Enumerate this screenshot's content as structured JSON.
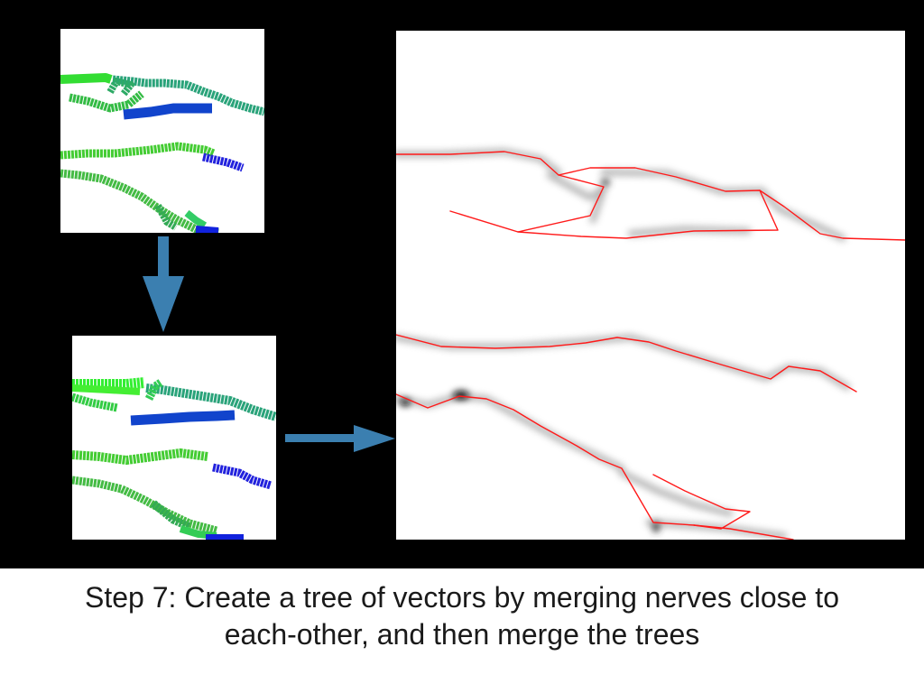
{
  "caption": {
    "line1": "Step 7: Create a tree of vectors by merging nerves close to",
    "line2": "each-other, and then merge the trees"
  },
  "colors": {
    "background": "#000000",
    "caption_area": "#ffffff",
    "arrow": "#3b7fb0",
    "nerve_tree": "#ff1a1a",
    "vector_green": "#33cc33",
    "vector_teal": "#22997a",
    "vector_blue": "#1133dd"
  },
  "icons": [
    "arrow-down-icon",
    "arrow-right-icon"
  ]
}
